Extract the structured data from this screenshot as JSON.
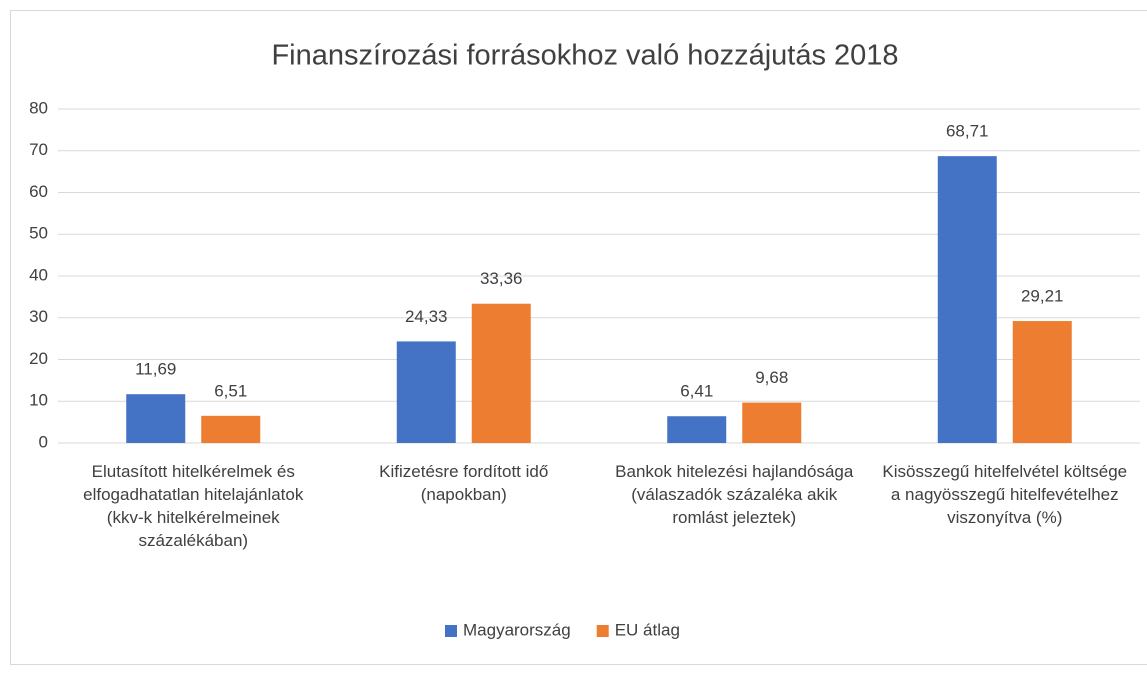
{
  "chart_data": {
    "type": "bar",
    "title": "Finanszírozási forrásokhoz való hozzájutás 2018",
    "categories": [
      "Elutasított hitelkérelmek és elfogadhatatlan hitelajánlatok (kkv-k hitelkérelmeinek százalékában)",
      "Kifizetésre fordított idő (napokban)",
      "Bankok hitelezési hajlandósága (válaszadók százaléka akik romlást jeleztek)",
      "Kisösszegű hitelfelvétel költsége a nagyösszegű hitelfevételhez viszonyítva (%)"
    ],
    "series": [
      {
        "name": "Magyarország",
        "color": "#4472c4",
        "values": [
          11.69,
          24.33,
          6.41,
          68.71
        ],
        "value_labels": [
          "11,69",
          "24,33",
          "6,41",
          "68,71"
        ]
      },
      {
        "name": "EU átlag",
        "color": "#ed7d31",
        "values": [
          6.51,
          33.36,
          9.68,
          29.21
        ],
        "value_labels": [
          "6,51",
          "33,36",
          "9,68",
          "29,21"
        ]
      }
    ],
    "ylim": [
      0,
      80
    ],
    "yticks": [
      0,
      10,
      20,
      30,
      40,
      50,
      60,
      70,
      80
    ],
    "grid": true,
    "legend": "bottom"
  }
}
